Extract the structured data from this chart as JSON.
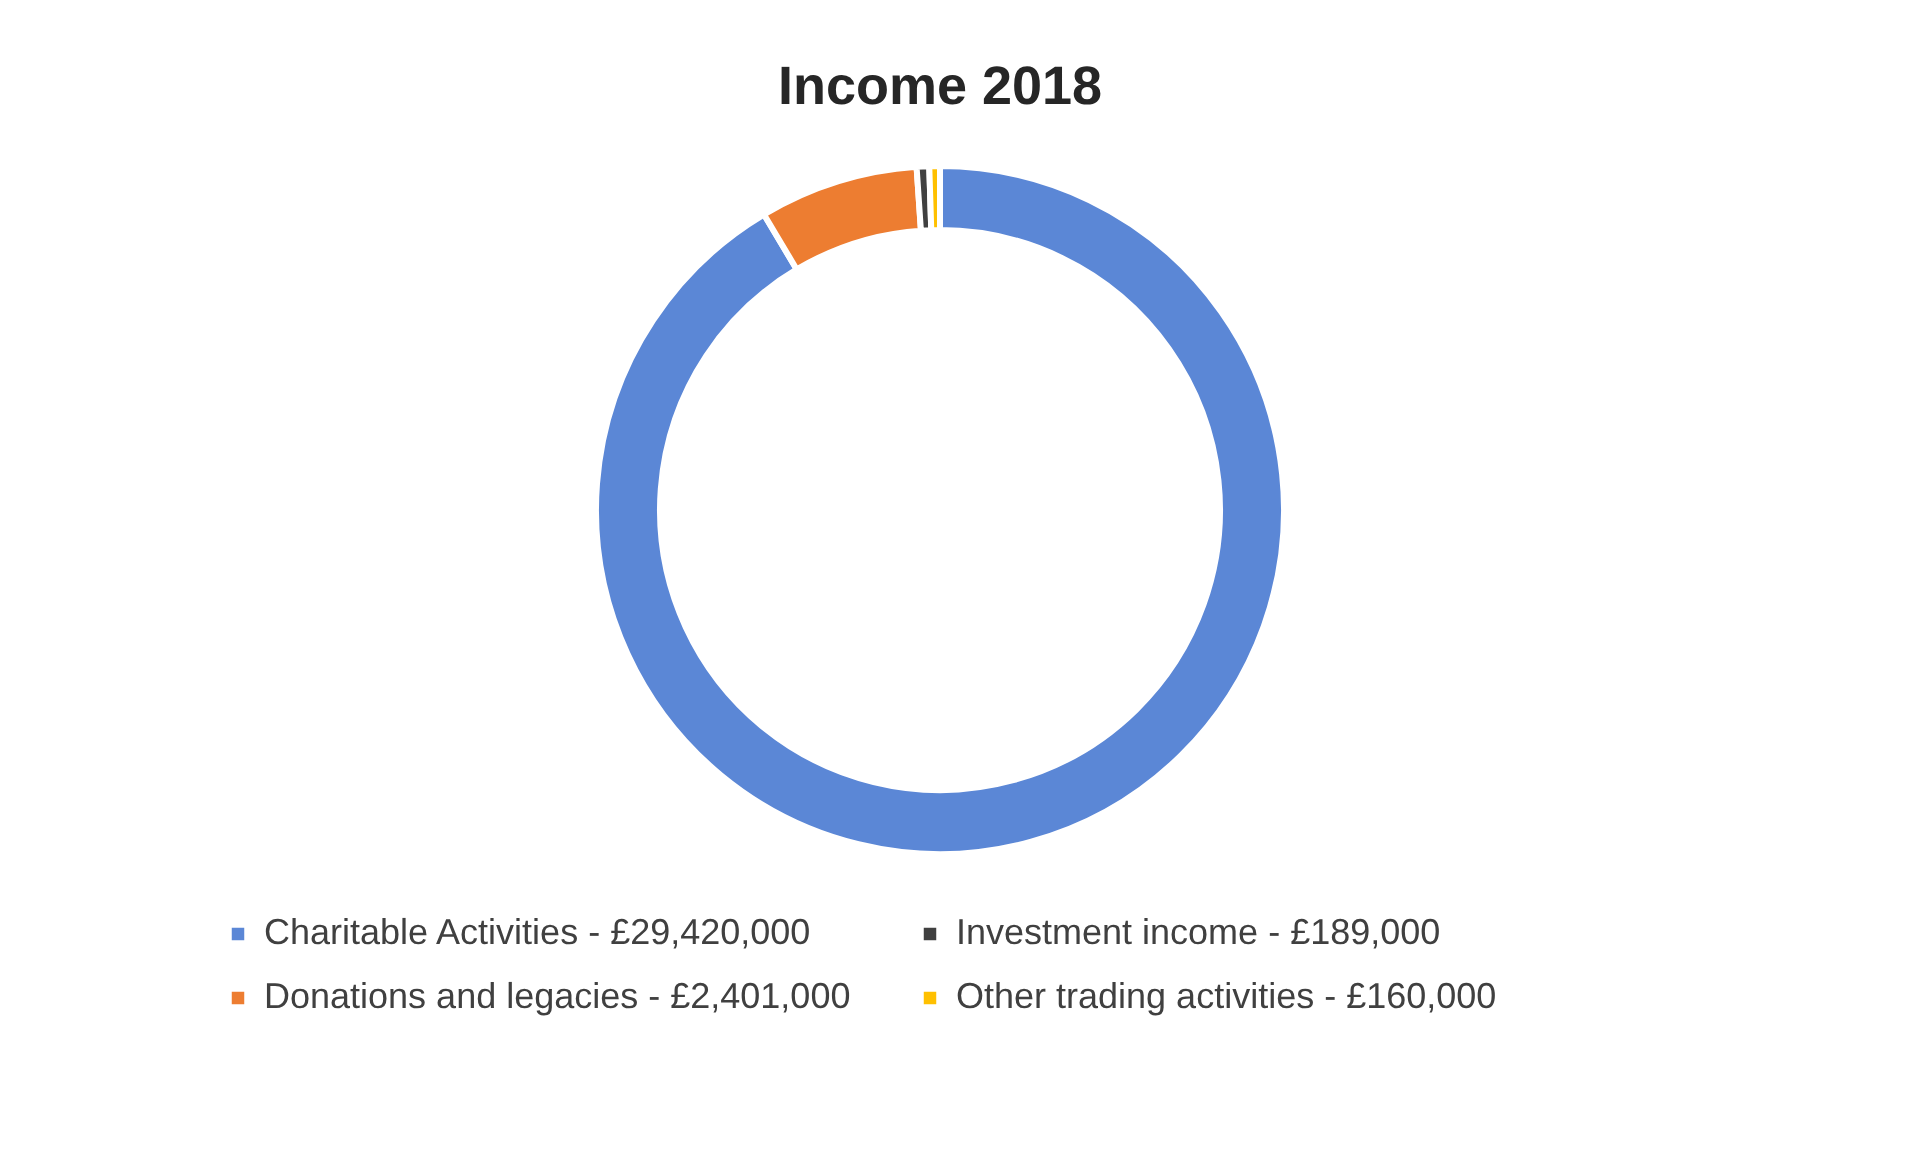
{
  "chart_data": {
    "type": "donut",
    "title": "Income 2018",
    "categories": [
      "Charitable Activities",
      "Donations and legacies",
      "Investment income",
      "Other trading activities"
    ],
    "values": [
      29420000,
      2401000,
      189000,
      160000
    ],
    "value_labels": [
      "£29,420,000",
      "£2,401,000",
      "£189,000",
      "£160,000"
    ],
    "colors": [
      "#5b87d6",
      "#ed7d31",
      "#404040",
      "#ffc000"
    ],
    "legend": "bottom"
  }
}
